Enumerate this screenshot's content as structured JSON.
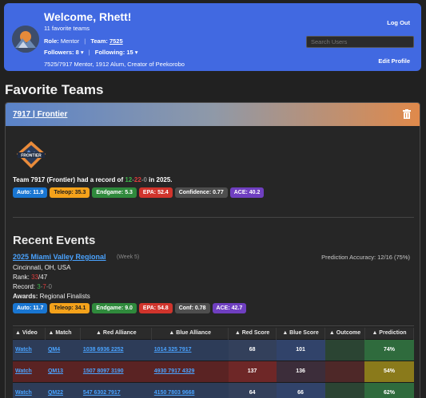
{
  "header": {
    "welcome": "Welcome, Rhett!",
    "fav_count": "11 favorite teams",
    "role_label": "Role:",
    "role_value": "Mentor",
    "team_label": "Team:",
    "team_value": "7525",
    "followers": "Followers: 8 ▾",
    "following": "Following: 15 ▾",
    "bio": "7525/7917 Mentor, 1912 Alum, Creator of Peekorobo",
    "logout": "Log Out",
    "search_placeholder": "Search Users",
    "edit_profile": "Edit Profile"
  },
  "page_title": "Favorite Teams",
  "team_card": {
    "title": "7917 | Frontier",
    "logo_text": "FRONTIER",
    "record_prefix": "Team 7917 (Frontier) had a record of ",
    "wins": "12",
    "losses": "22",
    "ties": "0",
    "record_suffix": " in 2025.",
    "dash": "-",
    "badges": [
      "Auto: 11.9",
      "Teleop: 35.3",
      "Endgame: 5.3",
      "EPA: 52.4",
      "Confidence: 0.77",
      "ACE: 40.2"
    ]
  },
  "recent_events": {
    "heading": "Recent Events",
    "event_name": "2025 Miami Valley Regional",
    "week": "(Week 5)",
    "prediction_accuracy": "Prediction Accuracy: 12/16 (75%)",
    "location": "Cincinnati, OH, USA",
    "rank_label": "Rank: ",
    "rank_value": "33",
    "rank_total": "/47",
    "record_label": "Record: ",
    "rec_wins": "3",
    "rec_losses": "7",
    "rec_ties": "0",
    "awards_label": "Awards:",
    "awards_value": " Regional Finalists",
    "badges": [
      "Auto: 11.7",
      "Teleop: 34.1",
      "Endgame: 9.0",
      "EPA: 54.8",
      "Conf: 0.78",
      "ACE: 42.7"
    ]
  },
  "matches_table": {
    "headers": [
      "▲ Video",
      "▲ Match",
      "▲ Red Alliance",
      "▲ Blue Alliance",
      "▲ Red Score",
      "▲ Blue Score",
      "▲ Outcome",
      "▲ Prediction"
    ],
    "rows": [
      {
        "video": "Watch",
        "match": "QM4",
        "red": "1038 6936 2252",
        "blue": "1014 325 7917",
        "red_score": "68",
        "blue_score": "101",
        "outcome": "",
        "prediction": "74%"
      },
      {
        "video": "Watch",
        "match": "QM13",
        "red": "1507 8097 3190",
        "blue": "4930 7917 4329",
        "red_score": "137",
        "blue_score": "136",
        "outcome": "",
        "prediction": "54%"
      },
      {
        "video": "Watch",
        "match": "QM22",
        "red": "547 6302 7917",
        "blue": "4150 7803 9668",
        "red_score": "64",
        "blue_score": "66",
        "outcome": "",
        "prediction": "62%"
      }
    ]
  }
}
